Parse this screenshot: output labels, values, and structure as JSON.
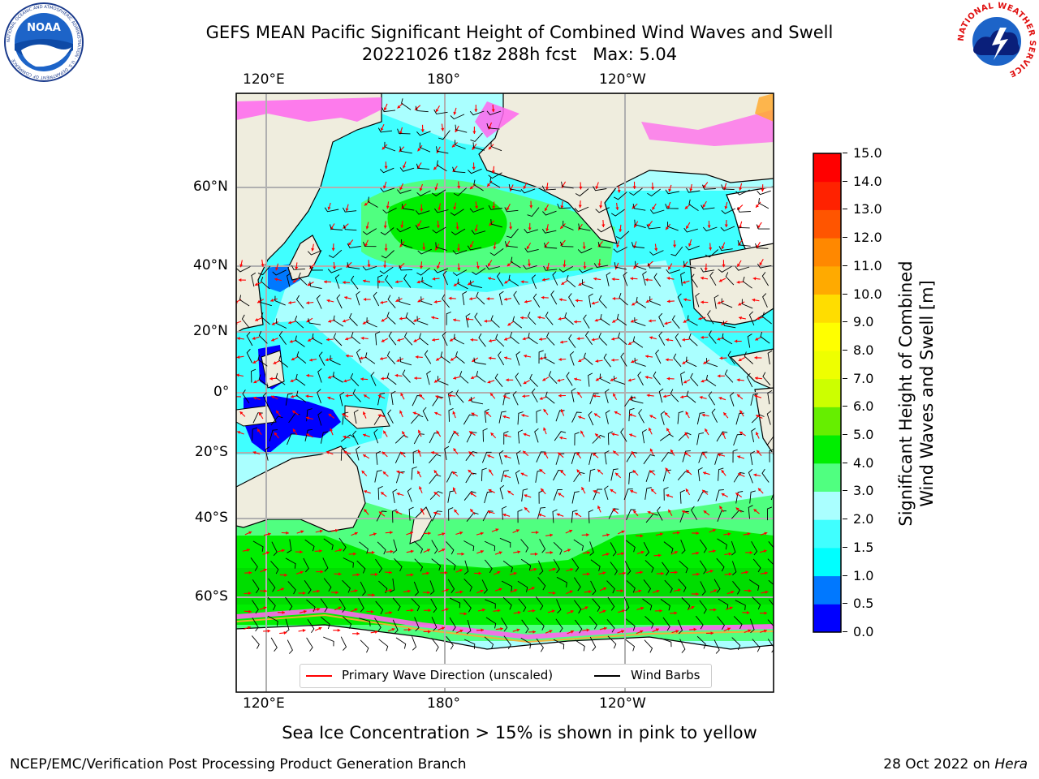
{
  "title": {
    "line1": "GEFS MEAN Pacific Significant Height of Combined Wind Waves and Swell",
    "line2": "20221026 t18z 288h fcst   Max: 5.04"
  },
  "axes": {
    "top_lon_labels": [
      "120°E",
      "180°",
      "120°W"
    ],
    "bottom_lon_labels": [
      "120°E",
      "180°",
      "120°W"
    ],
    "lat_labels": [
      "60°N",
      "40°N",
      "20°N",
      "0°",
      "20°S",
      "40°S",
      "60°S"
    ]
  },
  "legend": {
    "wave_label": "Primary Wave Direction (unscaled)",
    "barb_label": "Wind Barbs",
    "wave_color": "#ff0000",
    "barb_color": "#000000"
  },
  "colorbar": {
    "title_line1": "Significant Height of Combined",
    "title_line2": "Wind Waves and Swell [m]",
    "tick_labels": [
      "0.0",
      "0.5",
      "1.0",
      "1.5",
      "2.0",
      "3.0",
      "4.0",
      "5.0",
      "6.0",
      "7.0",
      "8.0",
      "9.0",
      "10.0",
      "11.0",
      "12.0",
      "13.0",
      "14.0",
      "15.0"
    ],
    "colors": [
      "#0000ff",
      "#0078ff",
      "#00ffff",
      "#40ffff",
      "#aaffff",
      "#50ff80",
      "#00ee00",
      "#66ee00",
      "#ccff00",
      "#eeff00",
      "#ffff00",
      "#ffdd00",
      "#ffaa00",
      "#ff8800",
      "#ff5500",
      "#ff2200",
      "#ff0000"
    ]
  },
  "note": "Sea Ice Concentration > 15% is shown in pink to yellow",
  "footer": {
    "left": "NCEP/EMC/Verification Post Processing Product Generation Branch",
    "right_prefix": "28 Oct 2022 on ",
    "right_host": "Hera"
  },
  "logos": {
    "noaa_text": "NOAA",
    "noaa_ring_text": "NATIONAL OCEANIC AND ATMOSPHERIC ADMINISTRATION · U.S. DEPARTMENT OF COMMERCE",
    "nws_ring_text": "NATIONAL WEATHER SERVICE"
  },
  "colors": {
    "land": "#efedde",
    "ocean_main": "#aaffff",
    "ocean_bright": "#40ffff",
    "swell_mid": "#50ff80",
    "swell_high": "#00ee00",
    "ice_pink": "#ff66ee",
    "ice_orange": "#ffaa33",
    "deep_blue": "#0000ff",
    "gridline": "#b0b0b0"
  }
}
